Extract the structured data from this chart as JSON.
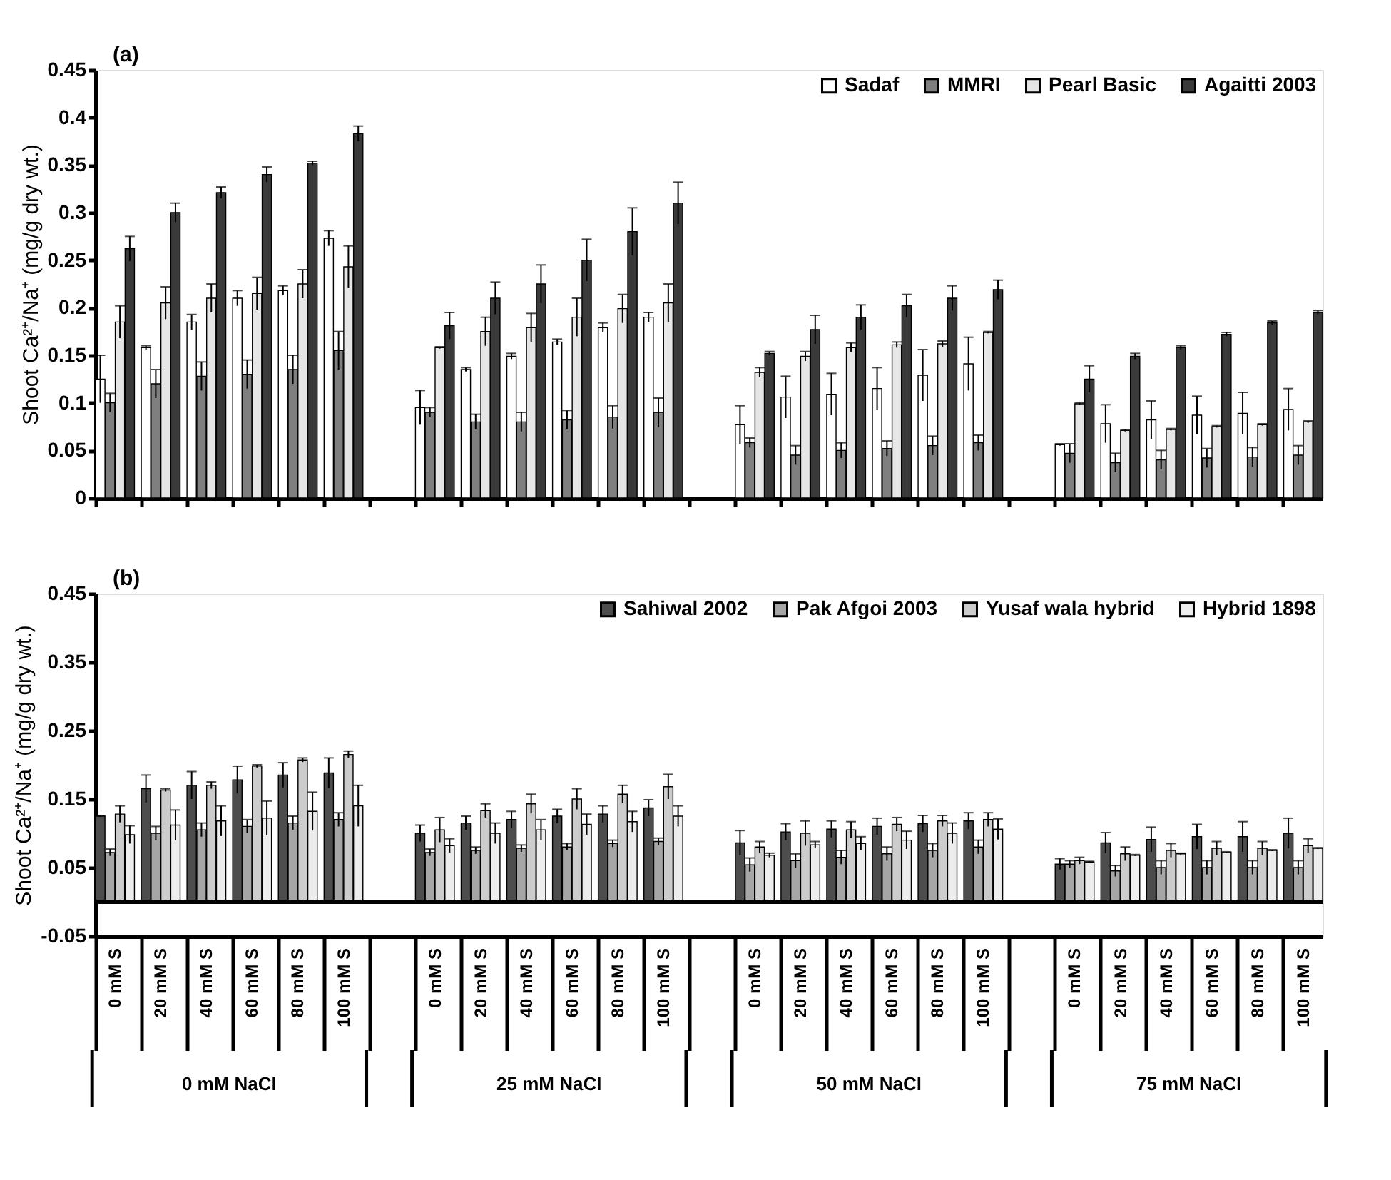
{
  "chart_data": [
    {
      "type": "bar",
      "title": "(a)",
      "ylabel": "Shoot Ca²⁺/Na⁺ (mg/g dry wt.)",
      "ylim": [
        0,
        0.45
      ],
      "yticks": [
        0,
        0.05,
        0.1,
        0.15,
        0.2,
        0.25,
        0.3,
        0.35,
        0.4,
        0.45
      ],
      "tick_labels": "y",
      "legend": "top right",
      "categories": [
        null,
        null,
        null,
        null,
        null,
        null,
        null,
        null,
        null,
        null,
        null,
        null,
        null,
        null,
        null,
        null,
        null,
        null,
        null,
        null,
        null,
        null,
        null,
        null,
        null,
        null,
        null
      ],
      "series": [
        {
          "name": "Sadaf",
          "color": "#ffffff",
          "values": [
            0.125,
            0.158,
            0.185,
            0.21,
            0.218,
            0.273,
            null,
            0.095,
            0.135,
            0.149,
            0.164,
            0.179,
            0.19,
            null,
            0.077,
            0.106,
            0.109,
            0.115,
            0.129,
            0.141,
            null,
            0.056,
            0.078,
            0.082,
            0.087,
            0.089,
            0.093
          ],
          "errors": [
            0.025,
            0.002,
            0.008,
            0.008,
            0.005,
            0.008,
            null,
            0.018,
            0.002,
            0.003,
            0.003,
            0.005,
            0.005,
            null,
            0.02,
            0.022,
            0.022,
            0.022,
            0.027,
            0.028,
            null,
            0.001,
            0.02,
            0.02,
            0.02,
            0.022,
            0.022
          ]
        },
        {
          "name": "MMRI",
          "color": "#7f7f7f",
          "values": [
            0.1,
            0.12,
            0.128,
            0.13,
            0.135,
            0.155,
            null,
            0.09,
            0.08,
            0.08,
            0.082,
            0.085,
            0.09,
            null,
            0.058,
            0.045,
            0.05,
            0.052,
            0.055,
            0.058,
            null,
            0.047,
            0.037,
            0.04,
            0.042,
            0.043,
            0.045
          ],
          "errors": [
            0.01,
            0.015,
            0.015,
            0.015,
            0.015,
            0.02,
            null,
            0.005,
            0.008,
            0.01,
            0.01,
            0.012,
            0.015,
            null,
            0.005,
            0.01,
            0.008,
            0.008,
            0.01,
            0.008,
            null,
            0.01,
            0.01,
            0.01,
            0.01,
            0.01,
            0.01
          ]
        },
        {
          "name": "Pearl Basic",
          "color": "#e6e6e6",
          "values": [
            0.185,
            0.205,
            0.21,
            0.215,
            0.225,
            0.243,
            null,
            0.158,
            0.175,
            0.179,
            0.19,
            0.199,
            0.205,
            null,
            0.132,
            0.149,
            0.158,
            0.161,
            0.162,
            0.174,
            null,
            0.099,
            0.071,
            0.072,
            0.075,
            0.077,
            0.08
          ],
          "errors": [
            0.017,
            0.017,
            0.015,
            0.017,
            0.015,
            0.022,
            null,
            0.001,
            0.015,
            0.015,
            0.02,
            0.015,
            0.02,
            null,
            0.005,
            0.005,
            0.005,
            0.003,
            0.003,
            0.001,
            null,
            0.001,
            0.001,
            0.001,
            0.001,
            0.001,
            0.001
          ]
        },
        {
          "name": "Agaitti 2003",
          "color": "#3a3a3a",
          "values": [
            0.262,
            0.3,
            0.321,
            0.34,
            0.352,
            0.383,
            null,
            0.181,
            0.21,
            0.225,
            0.25,
            0.28,
            0.31,
            null,
            0.152,
            0.177,
            0.19,
            0.202,
            0.21,
            0.219,
            null,
            0.125,
            0.149,
            0.158,
            0.172,
            0.184,
            0.195
          ],
          "errors": [
            0.013,
            0.01,
            0.006,
            0.008,
            0.002,
            0.008,
            null,
            0.014,
            0.017,
            0.02,
            0.022,
            0.025,
            0.022,
            null,
            0.002,
            0.015,
            0.013,
            0.012,
            0.013,
            0.01,
            null,
            0.014,
            0.003,
            0.002,
            0.002,
            0.002,
            0.002
          ]
        }
      ]
    },
    {
      "type": "bar",
      "title": "(b)",
      "ylabel": "Shoot Ca²⁺/Na⁺ (mg/g dry wt.)",
      "ylim": [
        -0.05,
        0.45
      ],
      "yticks": [
        -0.05,
        0.05,
        0.15,
        0.25,
        0.35,
        0.45
      ],
      "legend": "top right",
      "ref_lines": [
        {
          "axis": "y",
          "value": 0
        }
      ],
      "annotations": [
        "0 mM NaCl",
        "25 mM NaCl",
        "50 mM NaCl",
        "75 mM NaCl"
      ],
      "categories": [
        "0 mM S",
        "20 mM S",
        "40 mM S",
        "60 mM S",
        "80 mM S",
        "100 mM S",
        null,
        "0 mM S",
        "20 mM S",
        "40 mM S",
        "60 mM S",
        "80 mM S",
        "100 mM S",
        null,
        "0 mM S",
        "20 mM S",
        "40 mM S",
        "60 mM S",
        "80 mM S",
        "100 mM S",
        null,
        "0 mM S",
        "20 mM S",
        "40 mM S",
        "60 mM S",
        "80 mM S",
        "100 mM S"
      ],
      "series": [
        {
          "name": "Sahiwal 2002",
          "color": "#4d4d4d",
          "values": [
            0.125,
            0.165,
            0.17,
            0.178,
            0.185,
            0.188,
            null,
            0.1,
            0.115,
            0.12,
            0.125,
            0.128,
            0.137,
            null,
            0.086,
            0.102,
            0.106,
            0.11,
            0.114,
            0.118,
            null,
            0.055,
            0.086,
            0.091,
            0.095,
            0.095,
            0.1
          ],
          "errors": [
            0.001,
            0.02,
            0.02,
            0.02,
            0.018,
            0.022,
            null,
            0.012,
            0.01,
            0.012,
            0.01,
            0.012,
            0.012,
            null,
            0.018,
            0.012,
            0.012,
            0.012,
            0.012,
            0.012,
            null,
            0.008,
            0.015,
            0.018,
            0.018,
            0.022,
            0.022
          ]
        },
        {
          "name": "Pak Afgoi 2003",
          "color": "#a6a6a6",
          "values": [
            0.072,
            0.1,
            0.105,
            0.11,
            0.115,
            0.12,
            null,
            0.072,
            0.075,
            0.078,
            0.08,
            0.085,
            0.088,
            null,
            0.054,
            0.06,
            0.065,
            0.07,
            0.075,
            0.08,
            null,
            0.055,
            0.045,
            0.05,
            0.05,
            0.05,
            0.05
          ],
          "errors": [
            0.005,
            0.01,
            0.01,
            0.01,
            0.01,
            0.01,
            null,
            0.005,
            0.005,
            0.005,
            0.005,
            0.005,
            0.005,
            null,
            0.01,
            0.01,
            0.01,
            0.01,
            0.01,
            0.01,
            null,
            0.005,
            0.008,
            0.01,
            0.01,
            0.01,
            0.01
          ]
        },
        {
          "name": "Yusaf wala hybrid",
          "color": "#cccccc",
          "values": [
            0.128,
            0.163,
            0.17,
            0.198,
            0.207,
            0.215,
            null,
            0.105,
            0.133,
            0.143,
            0.15,
            0.157,
            0.168,
            null,
            0.08,
            0.1,
            0.105,
            0.113,
            0.118,
            0.12,
            null,
            0.06,
            0.07,
            0.075,
            0.078,
            0.078,
            0.082
          ],
          "errors": [
            0.012,
            0.002,
            0.005,
            0.002,
            0.003,
            0.005,
            null,
            0.018,
            0.01,
            0.014,
            0.015,
            0.013,
            0.018,
            null,
            0.008,
            0.018,
            0.012,
            0.01,
            0.008,
            0.01,
            null,
            0.005,
            0.01,
            0.01,
            0.01,
            0.01,
            0.01
          ]
        },
        {
          "name": "Hybrid 1898",
          "color": "#ededed",
          "values": [
            0.098,
            0.112,
            0.118,
            0.122,
            0.132,
            0.14,
            null,
            0.082,
            0.1,
            0.105,
            0.113,
            0.117,
            0.125,
            null,
            0.068,
            0.083,
            0.085,
            0.09,
            0.1,
            0.106,
            null,
            0.058,
            0.068,
            0.07,
            0.072,
            0.075,
            0.078
          ],
          "errors": [
            0.013,
            0.022,
            0.022,
            0.025,
            0.028,
            0.03,
            null,
            0.01,
            0.015,
            0.015,
            0.015,
            0.015,
            0.015,
            null,
            0.003,
            0.005,
            0.01,
            0.013,
            0.015,
            0.015,
            null,
            0.001,
            0.001,
            0.001,
            0.001,
            0.001,
            0.001
          ]
        }
      ]
    }
  ]
}
